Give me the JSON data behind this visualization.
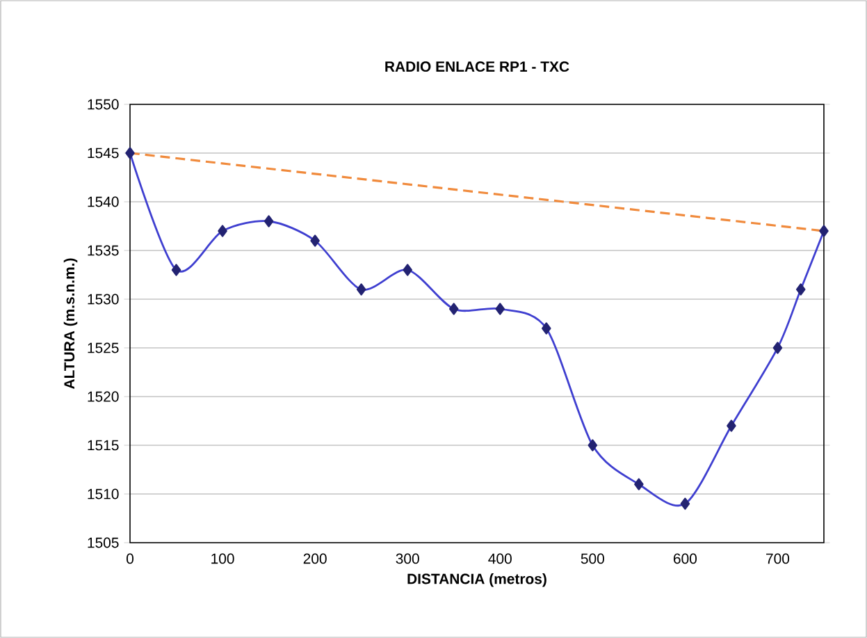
{
  "chart_data": {
    "type": "line",
    "title": "RADIO ENLACE RP1 - TXC",
    "xlabel": "DISTANCIA (metros)",
    "ylabel": "ALTURA (m.s.n.m.)",
    "series": [
      {
        "color": "#3f3fd0",
        "marker": "diamond",
        "line_style": "solid",
        "x": [
          0,
          50,
          100,
          150,
          200,
          250,
          300,
          350,
          400,
          450,
          500,
          550,
          600,
          650,
          700,
          725,
          750
        ],
        "values": [
          1545,
          1533,
          1537,
          1538,
          1536,
          1531,
          1533,
          1529,
          1529,
          1527,
          1515,
          1511,
          1509,
          1517,
          1525,
          1531,
          1537
        ]
      },
      {
        "color": "#f08a3c",
        "marker": "none",
        "line_style": "dashed",
        "x": [
          0,
          750
        ],
        "values": [
          1545,
          1537
        ]
      }
    ],
    "xlim": [
      0,
      750
    ],
    "xticks": [
      0,
      100,
      200,
      300,
      400,
      500,
      600,
      700
    ],
    "ylim": [
      1505,
      1550
    ],
    "yticks": [
      1505,
      1510,
      1515,
      1520,
      1525,
      1530,
      1535,
      1540,
      1545,
      1550
    ],
    "grid": "y"
  }
}
